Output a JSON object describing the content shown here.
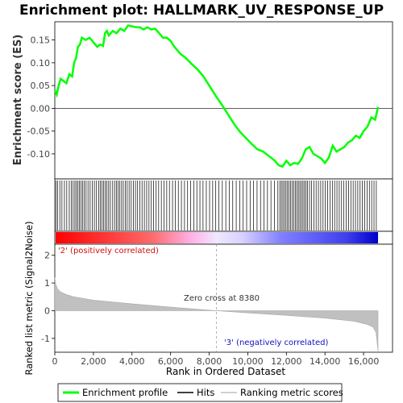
{
  "chart_data": {
    "type": "line",
    "title": "Enrichment plot: HALLMARK_UV_RESPONSE_UP",
    "xlabel": "Rank in Ordered Dataset",
    "top_panel": {
      "ylabel": "Enrichment score (ES)",
      "ylim": [
        -0.155,
        0.19
      ],
      "yticks": [
        -0.1,
        -0.05,
        0.0,
        0.05,
        0.1,
        0.15
      ],
      "ytick_labels": [
        "-0.10",
        "-0.05",
        "0.00",
        "0.05",
        "0.10",
        "0.15"
      ],
      "series": [
        {
          "name": "Enrichment profile",
          "color": "#00ff00",
          "x": [
            0,
            100,
            200,
            300,
            450,
            600,
            750,
            900,
            1000,
            1100,
            1200,
            1300,
            1400,
            1600,
            1800,
            2000,
            2200,
            2350,
            2500,
            2600,
            2700,
            2800,
            3000,
            3200,
            3400,
            3600,
            3800,
            4000,
            4200,
            4400,
            4600,
            4800,
            5000,
            5200,
            5400,
            5600,
            5800,
            6000,
            6200,
            6500,
            6800,
            7100,
            7400,
            7700,
            8000,
            8380,
            8700,
            9000,
            9300,
            9600,
            9900,
            10200,
            10500,
            10800,
            11100,
            11400,
            11600,
            11800,
            12000,
            12200,
            12400,
            12600,
            12800,
            13000,
            13200,
            13400,
            13600,
            13800,
            14000,
            14200,
            14400,
            14600,
            14800,
            15000,
            15200,
            15400,
            15600,
            15800,
            16000,
            16200,
            16400,
            16600,
            16750
          ],
          "y": [
            0.04,
            0.03,
            0.05,
            0.065,
            0.06,
            0.055,
            0.075,
            0.07,
            0.1,
            0.11,
            0.135,
            0.14,
            0.155,
            0.15,
            0.155,
            0.145,
            0.135,
            0.14,
            0.137,
            0.165,
            0.17,
            0.16,
            0.17,
            0.165,
            0.175,
            0.17,
            0.182,
            0.18,
            0.178,
            0.178,
            0.173,
            0.178,
            0.173,
            0.175,
            0.165,
            0.155,
            0.155,
            0.148,
            0.135,
            0.12,
            0.11,
            0.097,
            0.085,
            0.07,
            0.05,
            0.025,
            0.005,
            -0.015,
            -0.035,
            -0.052,
            -0.065,
            -0.078,
            -0.09,
            -0.095,
            -0.105,
            -0.115,
            -0.125,
            -0.128,
            -0.115,
            -0.125,
            -0.12,
            -0.122,
            -0.11,
            -0.09,
            -0.085,
            -0.1,
            -0.105,
            -0.11,
            -0.12,
            -0.108,
            -0.082,
            -0.095,
            -0.09,
            -0.085,
            -0.075,
            -0.07,
            -0.06,
            -0.065,
            -0.05,
            -0.04,
            -0.02,
            -0.025,
            0.003
          ]
        }
      ]
    },
    "hits": [
      60,
      150,
      260,
      370,
      500,
      620,
      750,
      860,
      950,
      1040,
      1120,
      1200,
      1280,
      1360,
      1440,
      1530,
      1620,
      1720,
      1830,
      1940,
      2050,
      2160,
      2270,
      2360,
      2450,
      2530,
      2610,
      2700,
      2790,
      2880,
      3000,
      3100,
      3190,
      3280,
      3370,
      3460,
      3550,
      3650,
      3750,
      3850,
      3960,
      4070,
      4180,
      4290,
      4400,
      4520,
      4640,
      4760,
      4880,
      5000,
      5120,
      5250,
      5380,
      5520,
      5660,
      5800,
      5940,
      6100,
      6250,
      6400,
      6560,
      6720,
      6880,
      7040,
      7200,
      7360,
      7520,
      7680,
      7850,
      8020,
      8180,
      8340,
      8500,
      8680,
      8860,
      9040,
      9220,
      9400,
      9580,
      9760,
      9940,
      10120,
      10300,
      10480,
      10660,
      10840,
      11020,
      11200,
      11380,
      11560,
      11660,
      11740,
      11820,
      11900,
      11980,
      12060,
      12140,
      12220,
      12300,
      12380,
      12460,
      12540,
      12620,
      12700,
      12780,
      12860,
      12940,
      13020,
      13100,
      13200,
      13300,
      13420,
      13540,
      13660,
      13780,
      13900,
      14020,
      14140,
      14260,
      14380,
      14500,
      14620,
      14740,
      14860,
      14980,
      15100,
      15220,
      15340,
      15460,
      15580,
      15700,
      15820,
      15940,
      16060,
      16180,
      16300,
      16420,
      16540,
      16660
    ],
    "bottom_panel": {
      "ylabel": "Ranked list metric (Signal2Noise)",
      "ylim": [
        -1.5,
        2.4
      ],
      "yticks": [
        -1,
        0,
        1,
        2
      ],
      "ytick_labels": [
        "-1",
        "0",
        "1",
        "2"
      ],
      "metric_x": [
        0,
        50,
        150,
        300,
        600,
        1000,
        2000,
        4000,
        6000,
        8380,
        10000,
        12000,
        14000,
        15500,
        16200,
        16500,
        16650,
        16750
      ],
      "metric_y": [
        1.2,
        0.95,
        0.78,
        0.68,
        0.58,
        0.5,
        0.38,
        0.25,
        0.13,
        0.0,
        -0.08,
        -0.17,
        -0.27,
        -0.38,
        -0.5,
        -0.6,
        -0.8,
        -1.45
      ]
    },
    "xlim": [
      0,
      17500
    ],
    "xticks": [
      0,
      2000,
      4000,
      6000,
      8000,
      10000,
      12000,
      14000,
      16000
    ],
    "xtick_labels": [
      "0",
      "2,000",
      "4,000",
      "6,000",
      "8,000",
      "10,000",
      "12,000",
      "14,000",
      "16,000"
    ],
    "zero_cross": 8380,
    "annotations": {
      "zero_cross_label": "Zero cross at 8380",
      "positive_label": "'2' (positively correlated)",
      "negative_label": "'3' (negatively correlated)"
    },
    "legend": {
      "placement": "bottom",
      "items": [
        {
          "label": "Enrichment profile",
          "color": "#00ff00"
        },
        {
          "label": "Hits",
          "color": "#000000"
        },
        {
          "label": "Ranking metric scores",
          "color": "#c0c0c0"
        }
      ]
    },
    "colors": {
      "positive_label_color": "#d01010",
      "negative_label_color": "#1010c0",
      "heatmap_red": "#ff0000",
      "heatmap_blue": "#0000dd"
    }
  }
}
